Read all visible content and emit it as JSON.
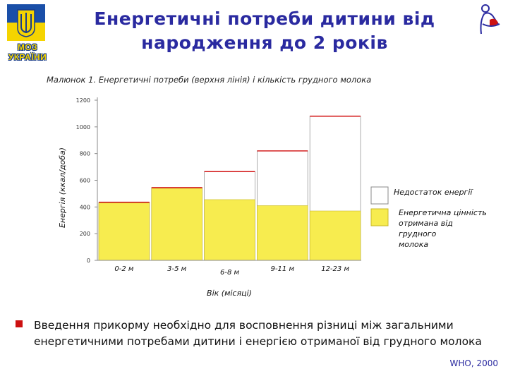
{
  "slide": {
    "logo_line1": "МОЗ",
    "logo_line2": "УКРАЇНИ",
    "title": "Енергетичні потреби дитини від народження до 2 років",
    "bullet_text": "Введення прикорму необхідно для восповнення різниці між загальними енергетичними потребами дитини і енергією отриманої від грудного молока",
    "source": "WHO, 2000"
  },
  "colors": {
    "title": "#2a2aa0",
    "breastmilk_fill": "#f7ec4f",
    "gap_fill": "#ffffff",
    "need_line": "#d42020",
    "bullet": "#cc1111"
  },
  "chart_data": {
    "type": "bar",
    "title": "Малюнок 1. Енергетичні потреби (верхня лінія) і кількість грудного молока",
    "xlabel": "Вік (місяці)",
    "ylabel": "Енергія (ккал/доба)",
    "ylim": [
      0,
      1200
    ],
    "yticks": [
      0,
      200,
      400,
      600,
      800,
      1000,
      1200
    ],
    "categories": [
      "0-2 м",
      "3-5 м",
      "6-8 м",
      "9-11 м",
      "12-23 м"
    ],
    "series": [
      {
        "name": "Енергетична цінність отримана від грудного молока",
        "values": [
          430,
          540,
          455,
          410,
          370
        ]
      },
      {
        "name": "Недостаток енергії",
        "values": [
          0,
          0,
          210,
          410,
          710
        ]
      }
    ],
    "total_need": [
      435,
      545,
      665,
      820,
      1080
    ],
    "legend": [
      "Недостаток енергії",
      "Енергетична цінність отримана від грудного молока"
    ],
    "legend_position": "right"
  }
}
